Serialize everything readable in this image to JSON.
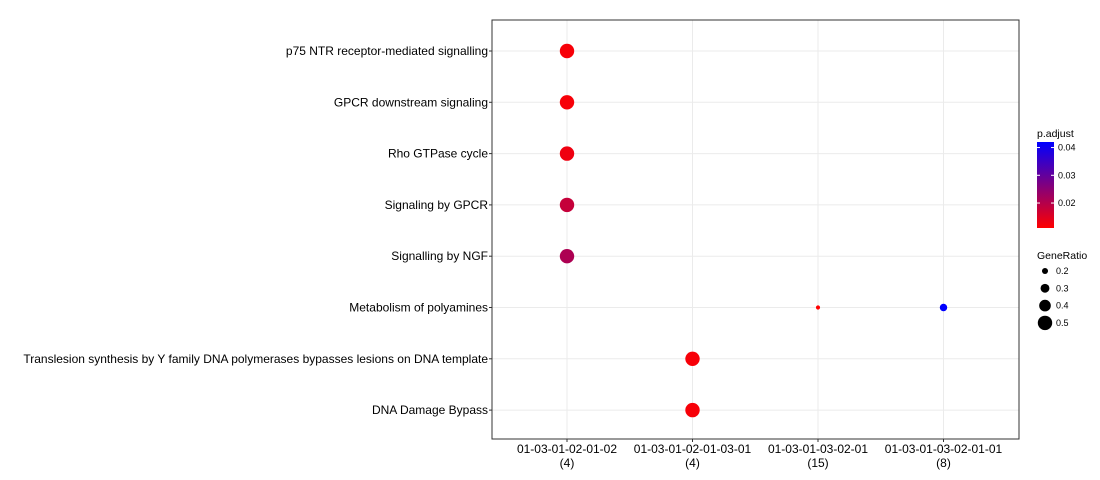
{
  "chart_data": {
    "type": "dot",
    "title": "",
    "xlabel": "",
    "ylabel": "",
    "grid": true,
    "legend_position": "right",
    "x_categories": [
      {
        "label": "01-03-01-02-01-02",
        "count": "(4)"
      },
      {
        "label": "01-03-01-02-01-03-01",
        "count": "(4)"
      },
      {
        "label": "01-03-01-03-02-01",
        "count": "(15)"
      },
      {
        "label": "01-03-01-03-02-01-01",
        "count": "(8)"
      }
    ],
    "y_categories": [
      "p75 NTR receptor-mediated signalling",
      "GPCR downstream signaling",
      "Rho GTPase cycle",
      "Signaling by GPCR",
      "Signalling by NGF",
      "Metabolism of polyamines",
      "Translesion synthesis by Y family DNA polymerases bypasses lesions on DNA template",
      "DNA Damage Bypass"
    ],
    "points": [
      {
        "x": "01-03-01-02-01-02",
        "y": "p75 NTR receptor-mediated signalling",
        "gene_ratio": 0.5,
        "p_adjust": 0.012
      },
      {
        "x": "01-03-01-02-01-02",
        "y": "GPCR downstream signaling",
        "gene_ratio": 0.5,
        "p_adjust": 0.012
      },
      {
        "x": "01-03-01-02-01-02",
        "y": "Rho GTPase cycle",
        "gene_ratio": 0.5,
        "p_adjust": 0.013
      },
      {
        "x": "01-03-01-02-01-02",
        "y": "Signaling by GPCR",
        "gene_ratio": 0.5,
        "p_adjust": 0.018
      },
      {
        "x": "01-03-01-02-01-02",
        "y": "Signalling by NGF",
        "gene_ratio": 0.5,
        "p_adjust": 0.021
      },
      {
        "x": "01-03-01-03-02-01",
        "y": "Metabolism of polyamines",
        "gene_ratio": 0.13,
        "p_adjust": 0.011
      },
      {
        "x": "01-03-01-03-02-01-01",
        "y": "Metabolism of polyamines",
        "gene_ratio": 0.25,
        "p_adjust": 0.042
      },
      {
        "x": "01-03-01-02-01-03-01",
        "y": "Translesion synthesis by Y family DNA polymerases bypasses lesions on DNA template",
        "gene_ratio": 0.5,
        "p_adjust": 0.012
      },
      {
        "x": "01-03-01-02-01-03-01",
        "y": "DNA Damage Bypass",
        "gene_ratio": 0.5,
        "p_adjust": 0.012
      }
    ],
    "color_legend": {
      "title": "p.adjust",
      "min": 0.011,
      "max": 0.042,
      "ticks": [
        0.02,
        0.03,
        0.04
      ],
      "tick_labels": [
        "0.02",
        "0.03",
        "0.04"
      ],
      "low_color": "#ff0000",
      "high_color": "#0000ff"
    },
    "size_legend": {
      "title": "GeneRatio",
      "values": [
        0.2,
        0.3,
        0.4,
        0.5
      ],
      "labels": [
        "0.2",
        "0.3",
        "0.4",
        "0.5"
      ]
    }
  }
}
